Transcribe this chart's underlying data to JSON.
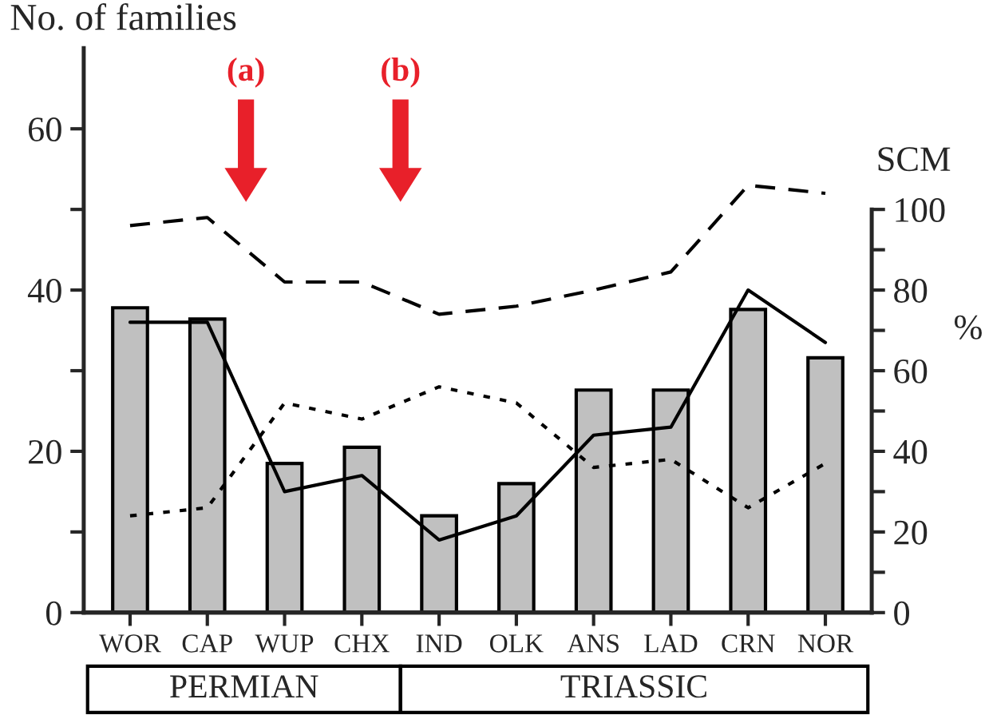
{
  "chart_data": {
    "type": "bar",
    "ylabel": "No. of families",
    "y2label": "%",
    "categories": [
      "WOR",
      "CAP",
      "WUP",
      "CHX",
      "IND",
      "OLK",
      "ANS",
      "LAD",
      "CRN",
      "NOR"
    ],
    "ylim": [
      0,
      70
    ],
    "yticks": [
      0,
      {
        "value": 10,
        "label": null
      },
      20,
      {
        "value": 30,
        "label": null
      },
      40,
      {
        "value": 50,
        "label": null
      },
      60
    ],
    "y2lim": [
      0,
      140
    ],
    "y2ticks": [
      0,
      {
        "value": 10,
        "label": null
      },
      20,
      {
        "value": 30,
        "label": null
      },
      40,
      {
        "value": 50,
        "label": null
      },
      60,
      {
        "value": 70,
        "label": null
      },
      80,
      {
        "value": 90,
        "label": null
      },
      100
    ],
    "series": [
      {
        "color": "#c0c0c0",
        "values": [
          37.8,
          36.4,
          18.5,
          20.5,
          12,
          16,
          27.6,
          27.6,
          37.6,
          31.6
        ]
      },
      {
        "type": "line",
        "axis": "y2",
        "color": "#000000",
        "line_style": "solid",
        "values": [
          72,
          72,
          30,
          34,
          18,
          24,
          44,
          46,
          80,
          67
        ]
      },
      {
        "type": "line",
        "axis": "y2",
        "color": "#000000",
        "line_style": "dashed",
        "values": [
          96,
          98,
          82,
          82,
          74,
          76,
          80,
          84.5,
          106,
          104
        ]
      },
      {
        "type": "line",
        "axis": "y2",
        "color": "#000000",
        "line_style": "dotted",
        "values": [
          24,
          26,
          52,
          48,
          56,
          52,
          36,
          38,
          26,
          37
        ]
      }
    ],
    "annotations": [
      "(a)",
      "(b)",
      "SCM",
      "PERMIAN",
      "TRIASSIC"
    ],
    "grid": false,
    "legend": false
  }
}
